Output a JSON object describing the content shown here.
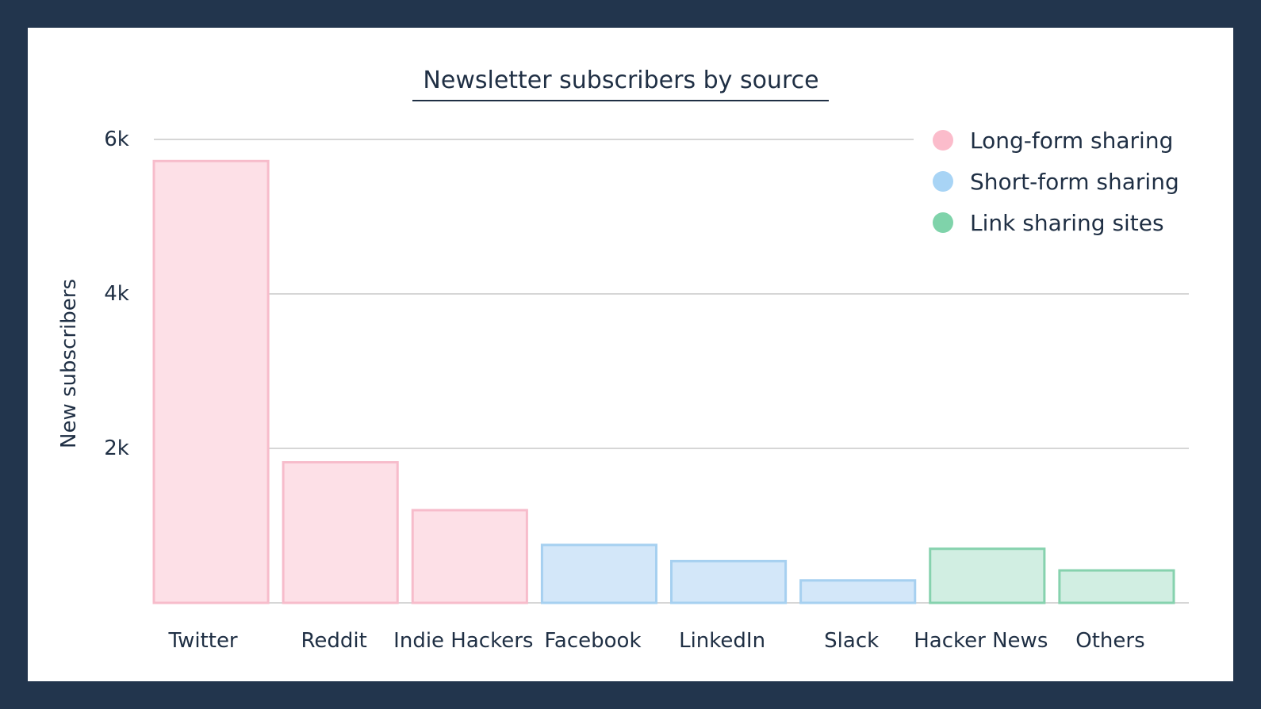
{
  "chart_data": {
    "type": "bar",
    "title": "Newsletter subscribers by source",
    "xlabel": "",
    "ylabel": "New subscribers",
    "ylim": [
      0,
      6000
    ],
    "yticks": [
      2000,
      4000,
      6000
    ],
    "ytick_labels": [
      "2k",
      "4k",
      "6k"
    ],
    "grid": true,
    "legend_position": "top-right",
    "categories": [
      "Twitter",
      "Reddit",
      "Indie Hackers",
      "Facebook",
      "LinkedIn",
      "Slack",
      "Hacker News",
      "Others"
    ],
    "values": [
      5720,
      1820,
      1200,
      750,
      540,
      290,
      700,
      420
    ],
    "groups": [
      0,
      0,
      0,
      1,
      1,
      1,
      2,
      2
    ],
    "legend": [
      {
        "label": "Long-form sharing",
        "fill": "#fde0e7",
        "stroke": "#f7bccb",
        "dot": "#fbbccb"
      },
      {
        "label": "Short-form sharing",
        "fill": "#d3e7f9",
        "stroke": "#a6d0f0",
        "dot": "#a8d4f5"
      },
      {
        "label": "Link sharing sites",
        "fill": "#d1eee2",
        "stroke": "#86d2ae",
        "dot": "#7fd3aa"
      }
    ]
  }
}
